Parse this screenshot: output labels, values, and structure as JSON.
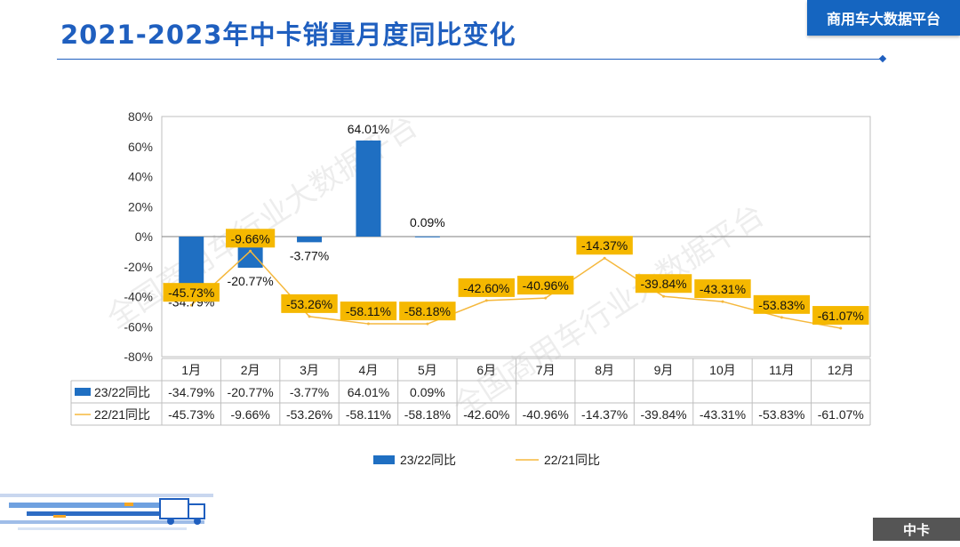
{
  "header": {
    "title": "2021-2023年中卡销量月度同比变化",
    "brand": "商用车大数据平台"
  },
  "footer": {
    "tag": "中卡"
  },
  "watermark": "全国商用车行业大数据平台",
  "colors": {
    "bar": "#1f6fc2",
    "line": "#f5b83d",
    "label_bg": "#f5b800",
    "title": "#1f5fbf"
  },
  "chart_data": {
    "type": "bar",
    "categories": [
      "1月",
      "2月",
      "3月",
      "4月",
      "5月",
      "6月",
      "7月",
      "8月",
      "9月",
      "10月",
      "11月",
      "12月"
    ],
    "series": [
      {
        "name": "23/22同比",
        "type": "bar",
        "values": [
          -34.79,
          -20.77,
          -3.77,
          64.01,
          0.09,
          null,
          null,
          null,
          null,
          null,
          null,
          null
        ],
        "labels": [
          "-34.79%",
          "-20.77%",
          "-3.77%",
          "64.01%",
          "0.09%",
          "",
          "",
          "",
          "",
          "",
          "",
          ""
        ]
      },
      {
        "name": "22/21同比",
        "type": "line",
        "values": [
          -45.73,
          -9.66,
          -53.26,
          -58.11,
          -58.18,
          -42.6,
          -40.96,
          -14.37,
          -39.84,
          -43.31,
          -53.83,
          -61.07
        ],
        "labels": [
          "-45.73%",
          "-9.66%",
          "-53.26%",
          "-58.11%",
          "-58.18%",
          "-42.60%",
          "-40.96%",
          "-14.37%",
          "-39.84%",
          "-43.31%",
          "-53.83%",
          "-61.07%"
        ]
      }
    ],
    "ylim": [
      -80,
      80
    ],
    "yticks": [
      "80%",
      "60%",
      "40%",
      "20%",
      "0%",
      "-20%",
      "-40%",
      "-60%",
      "-80%"
    ],
    "ytick_values": [
      80,
      60,
      40,
      20,
      0,
      -20,
      -40,
      -60,
      -80
    ],
    "legend": "bottom",
    "data_table": true
  }
}
